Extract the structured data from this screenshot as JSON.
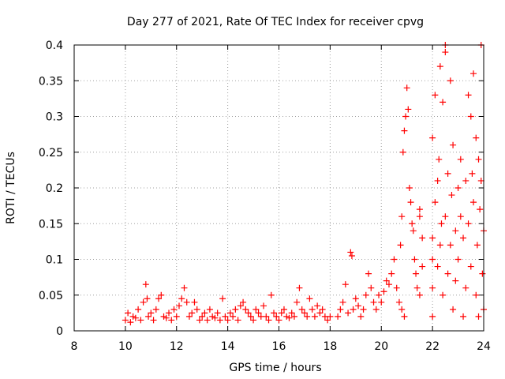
{
  "chart_data": {
    "type": "scatter",
    "title": "Day 277 of 2021, Rate Of TEC Index for receiver cpvg",
    "xlabel": "GPS time / hours",
    "ylabel": "ROTI / TECUs",
    "xlim": [
      8,
      24
    ],
    "ylim": [
      0,
      0.4
    ],
    "xticks": [
      "8",
      "10",
      "12",
      "14",
      "16",
      "18",
      "20",
      "22",
      "24"
    ],
    "yticks": [
      "0",
      "0.05",
      "0.1",
      "0.15",
      "0.2",
      "0.25",
      "0.3",
      "0.35",
      "0.4"
    ],
    "grid": true,
    "marker": "+",
    "marker_color": "#ff0000",
    "series": [
      {
        "name": "ROTI",
        "points": [
          [
            10.0,
            0.015
          ],
          [
            10.1,
            0.025
          ],
          [
            10.2,
            0.012
          ],
          [
            10.3,
            0.02
          ],
          [
            10.4,
            0.018
          ],
          [
            10.5,
            0.03
          ],
          [
            10.6,
            0.015
          ],
          [
            10.7,
            0.04
          ],
          [
            10.8,
            0.065
          ],
          [
            10.85,
            0.045
          ],
          [
            10.9,
            0.02
          ],
          [
            11.0,
            0.025
          ],
          [
            11.1,
            0.015
          ],
          [
            11.2,
            0.03
          ],
          [
            11.3,
            0.045
          ],
          [
            11.4,
            0.05
          ],
          [
            11.5,
            0.02
          ],
          [
            11.6,
            0.018
          ],
          [
            11.7,
            0.025
          ],
          [
            11.8,
            0.015
          ],
          [
            11.9,
            0.03
          ],
          [
            12.0,
            0.02
          ],
          [
            12.1,
            0.035
          ],
          [
            12.2,
            0.045
          ],
          [
            12.3,
            0.06
          ],
          [
            12.4,
            0.04
          ],
          [
            12.5,
            0.02
          ],
          [
            12.6,
            0.025
          ],
          [
            12.7,
            0.04
          ],
          [
            12.8,
            0.03
          ],
          [
            12.9,
            0.015
          ],
          [
            13.0,
            0.02
          ],
          [
            13.1,
            0.025
          ],
          [
            13.2,
            0.015
          ],
          [
            13.3,
            0.03
          ],
          [
            13.4,
            0.02
          ],
          [
            13.5,
            0.018
          ],
          [
            13.6,
            0.025
          ],
          [
            13.7,
            0.015
          ],
          [
            13.8,
            0.045
          ],
          [
            13.9,
            0.02
          ],
          [
            14.0,
            0.015
          ],
          [
            14.1,
            0.025
          ],
          [
            14.2,
            0.02
          ],
          [
            14.3,
            0.03
          ],
          [
            14.4,
            0.015
          ],
          [
            14.5,
            0.035
          ],
          [
            14.6,
            0.04
          ],
          [
            14.7,
            0.03
          ],
          [
            14.8,
            0.025
          ],
          [
            14.9,
            0.02
          ],
          [
            15.0,
            0.015
          ],
          [
            15.1,
            0.03
          ],
          [
            15.2,
            0.025
          ],
          [
            15.3,
            0.02
          ],
          [
            15.4,
            0.035
          ],
          [
            15.5,
            0.02
          ],
          [
            15.6,
            0.015
          ],
          [
            15.7,
            0.05
          ],
          [
            15.8,
            0.025
          ],
          [
            15.9,
            0.02
          ],
          [
            16.0,
            0.015
          ],
          [
            16.1,
            0.025
          ],
          [
            16.2,
            0.03
          ],
          [
            16.3,
            0.02
          ],
          [
            16.4,
            0.018
          ],
          [
            16.5,
            0.025
          ],
          [
            16.6,
            0.02
          ],
          [
            16.7,
            0.04
          ],
          [
            16.8,
            0.06
          ],
          [
            16.9,
            0.03
          ],
          [
            17.0,
            0.025
          ],
          [
            17.1,
            0.02
          ],
          [
            17.2,
            0.045
          ],
          [
            17.3,
            0.03
          ],
          [
            17.4,
            0.02
          ],
          [
            17.5,
            0.035
          ],
          [
            17.6,
            0.025
          ],
          [
            17.7,
            0.03
          ],
          [
            17.8,
            0.02
          ],
          [
            17.9,
            0.015
          ],
          [
            18.0,
            0.02
          ],
          [
            18.3,
            0.02
          ],
          [
            18.4,
            0.03
          ],
          [
            18.5,
            0.04
          ],
          [
            18.6,
            0.065
          ],
          [
            18.7,
            0.025
          ],
          [
            18.8,
            0.11
          ],
          [
            18.85,
            0.105
          ],
          [
            18.9,
            0.03
          ],
          [
            19.0,
            0.045
          ],
          [
            19.1,
            0.035
          ],
          [
            19.2,
            0.02
          ],
          [
            19.3,
            0.03
          ],
          [
            19.4,
            0.05
          ],
          [
            19.5,
            0.08
          ],
          [
            19.6,
            0.06
          ],
          [
            19.7,
            0.04
          ],
          [
            19.8,
            0.03
          ],
          [
            19.9,
            0.05
          ],
          [
            20.0,
            0.04
          ],
          [
            20.1,
            0.055
          ],
          [
            20.2,
            0.07
          ],
          [
            20.3,
            0.065
          ],
          [
            20.4,
            0.08
          ],
          [
            20.5,
            0.1
          ],
          [
            20.6,
            0.06
          ],
          [
            20.7,
            0.04
          ],
          [
            20.8,
            0.03
          ],
          [
            20.9,
            0.02
          ],
          [
            20.75,
            0.12
          ],
          [
            20.8,
            0.16
          ],
          [
            20.85,
            0.25
          ],
          [
            20.9,
            0.28
          ],
          [
            20.95,
            0.3
          ],
          [
            21.0,
            0.34
          ],
          [
            21.05,
            0.31
          ],
          [
            21.1,
            0.2
          ],
          [
            21.15,
            0.18
          ],
          [
            21.2,
            0.15
          ],
          [
            21.25,
            0.14
          ],
          [
            21.3,
            0.1
          ],
          [
            21.35,
            0.08
          ],
          [
            21.4,
            0.06
          ],
          [
            21.5,
            0.17
          ],
          [
            21.5,
            0.16
          ],
          [
            21.5,
            0.05
          ],
          [
            21.6,
            0.13
          ],
          [
            21.6,
            0.09
          ],
          [
            22.0,
            0.02
          ],
          [
            22.0,
            0.06
          ],
          [
            22.0,
            0.1
          ],
          [
            22.0,
            0.13
          ],
          [
            22.0,
            0.27
          ],
          [
            22.1,
            0.18
          ],
          [
            22.1,
            0.33
          ],
          [
            22.2,
            0.21
          ],
          [
            22.2,
            0.09
          ],
          [
            22.25,
            0.24
          ],
          [
            22.3,
            0.37
          ],
          [
            22.3,
            0.12
          ],
          [
            22.35,
            0.15
          ],
          [
            22.4,
            0.32
          ],
          [
            22.4,
            0.05
          ],
          [
            22.5,
            0.39
          ],
          [
            22.5,
            0.4
          ],
          [
            22.5,
            0.16
          ],
          [
            22.6,
            0.22
          ],
          [
            22.6,
            0.08
          ],
          [
            22.7,
            0.35
          ],
          [
            22.7,
            0.12
          ],
          [
            22.75,
            0.19
          ],
          [
            22.8,
            0.26
          ],
          [
            22.8,
            0.03
          ],
          [
            22.9,
            0.14
          ],
          [
            22.9,
            0.07
          ],
          [
            23.0,
            0.2
          ],
          [
            23.0,
            0.1
          ],
          [
            23.1,
            0.24
          ],
          [
            23.1,
            0.16
          ],
          [
            23.2,
            0.02
          ],
          [
            23.2,
            0.13
          ],
          [
            23.3,
            0.21
          ],
          [
            23.3,
            0.06
          ],
          [
            23.4,
            0.33
          ],
          [
            23.4,
            0.15
          ],
          [
            23.5,
            0.3
          ],
          [
            23.5,
            0.09
          ],
          [
            23.55,
            0.22
          ],
          [
            23.6,
            0.36
          ],
          [
            23.6,
            0.18
          ],
          [
            23.7,
            0.27
          ],
          [
            23.7,
            0.05
          ],
          [
            23.75,
            0.12
          ],
          [
            23.8,
            0.24
          ],
          [
            23.8,
            0.02
          ],
          [
            23.85,
            0.17
          ],
          [
            23.9,
            0.4
          ],
          [
            23.9,
            0.21
          ],
          [
            23.95,
            0.08
          ],
          [
            24.0,
            0.14
          ],
          [
            24.0,
            0.03
          ]
        ]
      }
    ]
  }
}
